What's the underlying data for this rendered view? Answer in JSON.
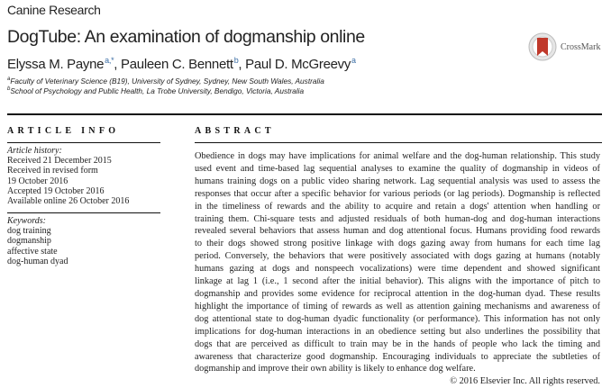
{
  "journal": "Canine Research",
  "title": "DogTube: An examination of dogmanship online",
  "authors": [
    {
      "name": "Elyssa M. Payne",
      "sup": "a,*"
    },
    {
      "name": "Pauleen C. Bennett",
      "sup": "b"
    },
    {
      "name": "Paul D. McGreevy",
      "sup": "a"
    }
  ],
  "affiliations": [
    {
      "sup": "a",
      "text": "Faculty of Veterinary Science (B19), University of Sydney, Sydney, New South Wales, Australia"
    },
    {
      "sup": "b",
      "text": "School of Psychology and Public Health, La Trobe University, Bendigo, Victoria, Australia"
    }
  ],
  "crossmark": "CrossMark",
  "article_info": {
    "heading": "ARTICLE INFO",
    "history_label": "Article history:",
    "history": [
      "Received 21 December 2015",
      "Received in revised form",
      "19 October 2016",
      "Accepted 19 October 2016",
      "Available online 26 October 2016"
    ],
    "keywords_label": "Keywords:",
    "keywords": [
      "dog training",
      "dogmanship",
      "affective state",
      "dog-human dyad"
    ]
  },
  "abstract": {
    "heading": "ABSTRACT",
    "lines": [
      "Obedience in dogs may have implications for animal welfare and the dog-human relationship. This study",
      "used event and time-based lag sequential analyses to examine the quality of dogmanship in videos of",
      "humans training dogs on a public video sharing network. Lag sequential analysis was used to assess the",
      "responses that occur after a specific behavior for various periods (or lag periods). Dogmanship is reflected",
      "in the timeliness of rewards and the ability to acquire and retain a dogs' attention when handling or",
      "training them. Chi-square tests and adjusted residuals of both human-dog and dog-human interactions",
      "revealed several behaviors that assess human and dog attentional focus. Humans providing food rewards",
      "to their dogs showed strong positive linkage with dogs gazing away from humans for each time lag",
      "period. Conversely, the behaviors that were positively associated with dogs gazing at humans (notably",
      "humans gazing at dogs and nonspeech vocalizations) were time dependent and showed significant",
      "linkage at lag 1 (i.e., 1 second after the initial behavior). This aligns with the importance of pitch to",
      "dogmanship and provides some evidence for reciprocal attention in the dog-human dyad. These results",
      "highlight the importance of timing of rewards as well as attention gaining mechanisms and awareness of",
      "dog attentional state to dog-human dyadic functionality (or performance). This information has not only",
      "implications for dog-human interactions in an obedience setting but also underlines the possibility that",
      "dogs that are perceived as difficult to train may be in the hands of people who lack the timing and",
      "awareness that characterize good dogmanship. Encouraging individuals to appreciate the subtleties of",
      "dogmanship and improve their own ability is likely to enhance dog welfare."
    ],
    "copyright": "© 2016 Elsevier Inc. All rights reserved."
  },
  "colors": {
    "link": "#3b6ea5",
    "crossmark_red": "#c0392b"
  }
}
